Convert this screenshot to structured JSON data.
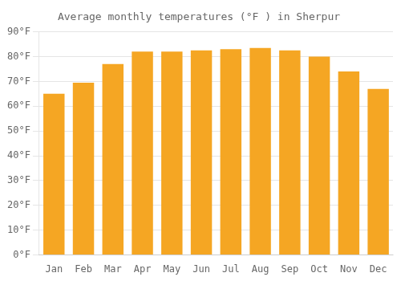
{
  "chart_data": {
    "type": "bar",
    "title": "Average monthly temperatures (°F ) in Sherpur",
    "categories": [
      "Jan",
      "Feb",
      "Mar",
      "Apr",
      "May",
      "Jun",
      "Jul",
      "Aug",
      "Sep",
      "Oct",
      "Nov",
      "Dec"
    ],
    "values": [
      65,
      69.5,
      77,
      82,
      82,
      82.5,
      83,
      83.5,
      82.5,
      80,
      74,
      67
    ],
    "color": "#F5A623",
    "ylim": [
      0,
      90
    ],
    "yticks": [
      {
        "value": 0,
        "label": "0°F"
      },
      {
        "value": 10,
        "label": "10°F"
      },
      {
        "value": 20,
        "label": "20°F"
      },
      {
        "value": 30,
        "label": "30°F"
      },
      {
        "value": 40,
        "label": "40°F"
      },
      {
        "value": 50,
        "label": "50°F"
      },
      {
        "value": 60,
        "label": "60°F"
      },
      {
        "value": 70,
        "label": "70°F"
      },
      {
        "value": 80,
        "label": "80°F"
      },
      {
        "value": 90,
        "label": "90°F"
      }
    ],
    "grid": true
  }
}
